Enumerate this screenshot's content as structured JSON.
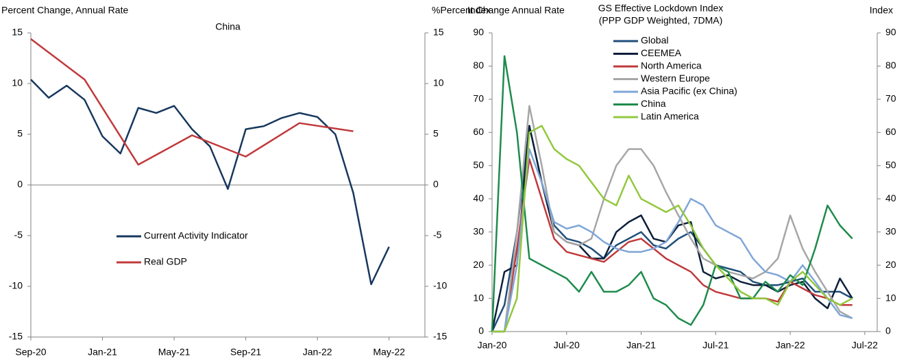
{
  "chart_data": [
    {
      "type": "line",
      "title": "China",
      "y_label": "Percent Change, Annual Rate",
      "y2_label": "%Percent Change Annual Rate",
      "x": [
        "2020-09",
        "2020-10",
        "2020-11",
        "2020-12",
        "2021-01",
        "2021-02",
        "2021-03",
        "2021-04",
        "2021-05",
        "2021-06",
        "2021-07",
        "2021-08",
        "2021-09",
        "2021-10",
        "2021-11",
        "2021-12",
        "2022-01",
        "2022-02",
        "2022-03",
        "2022-04",
        "2022-05"
      ],
      "xlim": [
        "2020-09",
        "2022-07"
      ],
      "xticks": [
        {
          "value": "2020-09",
          "label": "Sep-20"
        },
        {
          "value": "2021-01",
          "label": "Jan-21"
        },
        {
          "value": "2021-05",
          "label": "May-21"
        },
        {
          "value": "2021-09",
          "label": "Sep-21"
        },
        {
          "value": "2022-01",
          "label": "Jan-22"
        },
        {
          "value": "2022-05",
          "label": "May-22"
        }
      ],
      "ylim": [
        -15,
        15
      ],
      "yticks": [
        -15,
        -10,
        -5,
        0,
        5,
        10,
        15
      ],
      "y2lim": [
        -15,
        15
      ],
      "y2ticks": [
        -15,
        -10,
        -5,
        0,
        5,
        10,
        15
      ],
      "zero_line": true,
      "series": [
        {
          "name": "Current Activity Indicator",
          "color": "#17375e",
          "values": [
            10.4,
            8.6,
            9.8,
            8.4,
            4.8,
            3.1,
            7.6,
            7.1,
            7.8,
            5.5,
            3.8,
            -0.4,
            5.5,
            5.8,
            6.6,
            7.1,
            6.7,
            5.0,
            -0.8,
            -9.8,
            -6.1
          ]
        },
        {
          "name": "Real GDP",
          "color": "#c0393b",
          "x": [
            "2020-09",
            "2020-12",
            "2021-03",
            "2021-06",
            "2021-09",
            "2021-12",
            "2022-03"
          ],
          "values": [
            14.4,
            10.4,
            2.0,
            4.9,
            2.8,
            6.1,
            5.3
          ]
        }
      ]
    },
    {
      "type": "line",
      "title": "GS Effective Lockdown Index",
      "subtitle": "(PPP GDP Weighted, 7DMA)",
      "y_label": "Index",
      "y2_label": "Index",
      "x": [
        "2020-01",
        "2020-02",
        "2020-03",
        "2020-04",
        "2020-05",
        "2020-06",
        "2020-07",
        "2020-08",
        "2020-09",
        "2020-10",
        "2020-11",
        "2020-12",
        "2021-01",
        "2021-02",
        "2021-03",
        "2021-04",
        "2021-05",
        "2021-06",
        "2021-07",
        "2021-08",
        "2021-09",
        "2021-10",
        "2021-11",
        "2021-12",
        "2022-01",
        "2022-02",
        "2022-03",
        "2022-04",
        "2022-05",
        "2022-06"
      ],
      "xlim": [
        "2020-01",
        "2022-08"
      ],
      "xticks": [
        {
          "value": "2020-01",
          "label": "Jan-20"
        },
        {
          "value": "2020-07",
          "label": "Jul-20"
        },
        {
          "value": "2021-01",
          "label": "Jan-21"
        },
        {
          "value": "2021-07",
          "label": "Jul-21"
        },
        {
          "value": "2022-01",
          "label": "Jan-22"
        },
        {
          "value": "2022-07",
          "label": "Jul-22"
        }
      ],
      "ylim": [
        0,
        90
      ],
      "yticks": [
        0,
        10,
        20,
        30,
        40,
        50,
        60,
        70,
        80,
        90
      ],
      "y2lim": [
        0,
        90
      ],
      "y2ticks": [
        0,
        10,
        20,
        30,
        40,
        50,
        60,
        70,
        80,
        90
      ],
      "zero_line": false,
      "series": [
        {
          "name": "Global",
          "color": "#1f4e79",
          "values": [
            0,
            8,
            30,
            62,
            45,
            32,
            28,
            27,
            25,
            22,
            26,
            28,
            30,
            26,
            25,
            28,
            30,
            25,
            20,
            19,
            18,
            15,
            14,
            14,
            15,
            16,
            12,
            12,
            12,
            10
          ]
        },
        {
          "name": "CEEMEA",
          "color": "#0c1f3a",
          "values": [
            0,
            18,
            20,
            62,
            45,
            30,
            27,
            26,
            22,
            22,
            30,
            33,
            35,
            28,
            27,
            32,
            33,
            18,
            16,
            17,
            15,
            14,
            14,
            12,
            14,
            15,
            10,
            7,
            16,
            10
          ]
        },
        {
          "name": "North America",
          "color": "#c0393b",
          "values": [
            0,
            0,
            25,
            52,
            40,
            28,
            24,
            23,
            22,
            21,
            24,
            27,
            28,
            25,
            22,
            20,
            18,
            14,
            12,
            11,
            10,
            10,
            10,
            9,
            15,
            13,
            11,
            10,
            8,
            8
          ]
        },
        {
          "name": "Western Europe",
          "color": "#a6a6a6",
          "values": [
            0,
            0,
            30,
            68,
            50,
            30,
            27,
            26,
            28,
            40,
            50,
            55,
            55,
            50,
            42,
            35,
            28,
            22,
            20,
            18,
            17,
            16,
            18,
            22,
            35,
            25,
            18,
            12,
            6,
            4
          ]
        },
        {
          "name": "Asia Pacific (ex China)",
          "color": "#7ea6d8",
          "values": [
            0,
            0,
            20,
            55,
            45,
            33,
            31,
            32,
            30,
            27,
            25,
            24,
            24,
            25,
            27,
            33,
            40,
            38,
            32,
            30,
            28,
            22,
            18,
            17,
            15,
            20,
            15,
            10,
            5,
            4
          ]
        },
        {
          "name": "China",
          "color": "#1e8b4c",
          "values": [
            0,
            83,
            60,
            22,
            20,
            18,
            16,
            12,
            18,
            12,
            12,
            14,
            18,
            10,
            8,
            4,
            2,
            8,
            20,
            18,
            10,
            10,
            15,
            12,
            17,
            14,
            25,
            38,
            32,
            28
          ]
        },
        {
          "name": "Latin America",
          "color": "#92c83e",
          "values": [
            0,
            0,
            10,
            60,
            62,
            55,
            52,
            50,
            45,
            40,
            38,
            47,
            40,
            38,
            36,
            38,
            32,
            25,
            20,
            16,
            12,
            10,
            10,
            8,
            15,
            18,
            14,
            10,
            8,
            10
          ]
        }
      ]
    }
  ]
}
